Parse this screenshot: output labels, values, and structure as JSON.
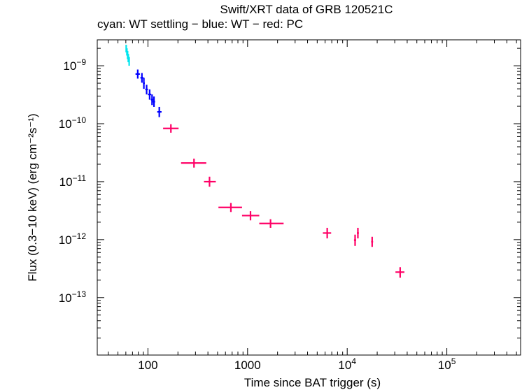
{
  "chart_data": {
    "type": "scatter",
    "title": "Swift/XRT data of GRB 120521C",
    "subtitle": "cyan: WT settling − blue: WT − red: PC",
    "xlabel": "Time since BAT trigger (s)",
    "ylabel": "Flux (0.3−10 keV) (erg cm⁻²s⁻¹)",
    "x_scale": "log",
    "y_scale": "log",
    "xlim": [
      31,
      550000
    ],
    "ylim": [
      1.02e-14,
      2.8e-09
    ],
    "x_ticks": [
      {
        "value": 100,
        "label": "100"
      },
      {
        "value": 1000,
        "label": "1000"
      },
      {
        "value": 10000,
        "label": "10",
        "exp": "4"
      },
      {
        "value": 100000,
        "label": "10",
        "exp": "5"
      }
    ],
    "y_ticks": [
      {
        "value": 1e-09,
        "label": "10",
        "exp": "−9"
      },
      {
        "value": 1e-10,
        "label": "10",
        "exp": "−10"
      },
      {
        "value": 1e-11,
        "label": "10",
        "exp": "−11"
      },
      {
        "value": 1e-12,
        "label": "10",
        "exp": "−12"
      },
      {
        "value": 1e-13,
        "label": "10",
        "exp": "−13"
      }
    ],
    "series": [
      {
        "color": "#00e5ee",
        "points": [
          {
            "x": 60.5,
            "xlo": 60.0,
            "xhi": 61.0,
            "y": 2e-09,
            "ylo": 1.7e-09,
            "yhi": 2.3e-09
          },
          {
            "x": 61.5,
            "xlo": 61.0,
            "xhi": 62.0,
            "y": 1.75e-09,
            "ylo": 1.5e-09,
            "yhi": 2e-09
          },
          {
            "x": 62.5,
            "xlo": 62.0,
            "xhi": 63.0,
            "y": 1.55e-09,
            "ylo": 1.3e-09,
            "yhi": 1.8e-09
          },
          {
            "x": 63.5,
            "xlo": 63.0,
            "xhi": 64.0,
            "y": 1.35e-09,
            "ylo": 1.15e-09,
            "yhi": 1.6e-09
          },
          {
            "x": 64.8,
            "xlo": 64.0,
            "xhi": 65.6,
            "y": 1.2e-09,
            "ylo": 1e-09,
            "yhi": 1.42e-09
          }
        ]
      },
      {
        "color": "#0000ff",
        "points": [
          {
            "x": 79,
            "xlo": 75,
            "xhi": 83,
            "y": 7.2e-10,
            "ylo": 6e-10,
            "yhi": 8.6e-10
          },
          {
            "x": 87,
            "xlo": 84,
            "xhi": 90,
            "y": 6.2e-10,
            "ylo": 5.1e-10,
            "yhi": 7.5e-10
          },
          {
            "x": 91,
            "xlo": 89,
            "xhi": 93,
            "y": 5e-10,
            "ylo": 4e-10,
            "yhi": 6.2e-10
          },
          {
            "x": 97,
            "xlo": 94,
            "xhi": 100,
            "y": 3.9e-10,
            "ylo": 3.2e-10,
            "yhi": 4.7e-10
          },
          {
            "x": 104,
            "xlo": 100,
            "xhi": 108,
            "y": 3.2e-10,
            "ylo": 2.6e-10,
            "yhi": 3.9e-10
          },
          {
            "x": 110,
            "xlo": 107,
            "xhi": 113,
            "y": 2.6e-10,
            "ylo": 2.1e-10,
            "yhi": 3.2e-10
          },
          {
            "x": 115,
            "xlo": 112,
            "xhi": 118,
            "y": 2.4e-10,
            "ylo": 1.95e-10,
            "yhi": 2.95e-10
          },
          {
            "x": 130,
            "xlo": 124,
            "xhi": 137,
            "y": 1.6e-10,
            "ylo": 1.3e-10,
            "yhi": 1.95e-10
          }
        ]
      },
      {
        "color": "#ff0066",
        "points": [
          {
            "x": 170,
            "xlo": 142,
            "xhi": 203,
            "y": 8.3e-11,
            "ylo": 7e-11,
            "yhi": 9.8e-11
          },
          {
            "x": 290,
            "xlo": 215,
            "xhi": 385,
            "y": 2.1e-11,
            "ylo": 1.75e-11,
            "yhi": 2.5e-11
          },
          {
            "x": 415,
            "xlo": 365,
            "xhi": 480,
            "y": 1e-11,
            "ylo": 8.2e-12,
            "yhi": 1.22e-11
          },
          {
            "x": 680,
            "xlo": 510,
            "xhi": 880,
            "y": 3.6e-12,
            "ylo": 3e-12,
            "yhi": 4.3e-12
          },
          {
            "x": 1070,
            "xlo": 880,
            "xhi": 1310,
            "y": 2.6e-12,
            "ylo": 2.15e-12,
            "yhi": 3.1e-12
          },
          {
            "x": 1700,
            "xlo": 1310,
            "xhi": 2300,
            "y": 1.9e-12,
            "ylo": 1.6e-12,
            "yhi": 2.25e-12
          },
          {
            "x": 6300,
            "xlo": 5700,
            "xhi": 6900,
            "y": 1.3e-12,
            "ylo": 1.05e-12,
            "yhi": 1.6e-12
          },
          {
            "x": 12000,
            "xlo": 11700,
            "xhi": 12300,
            "y": 9.8e-13,
            "ylo": 7.8e-13,
            "yhi": 1.22e-12
          },
          {
            "x": 12800,
            "xlo": 12500,
            "xhi": 13100,
            "y": 1.3e-12,
            "ylo": 1.05e-12,
            "yhi": 1.6e-12
          },
          {
            "x": 17800,
            "xlo": 17400,
            "xhi": 18200,
            "y": 9.2e-13,
            "ylo": 7.5e-13,
            "yhi": 1.12e-12
          },
          {
            "x": 34000,
            "xlo": 30500,
            "xhi": 37500,
            "y": 2.75e-13,
            "ylo": 2.2e-13,
            "yhi": 3.35e-13
          }
        ]
      }
    ]
  }
}
